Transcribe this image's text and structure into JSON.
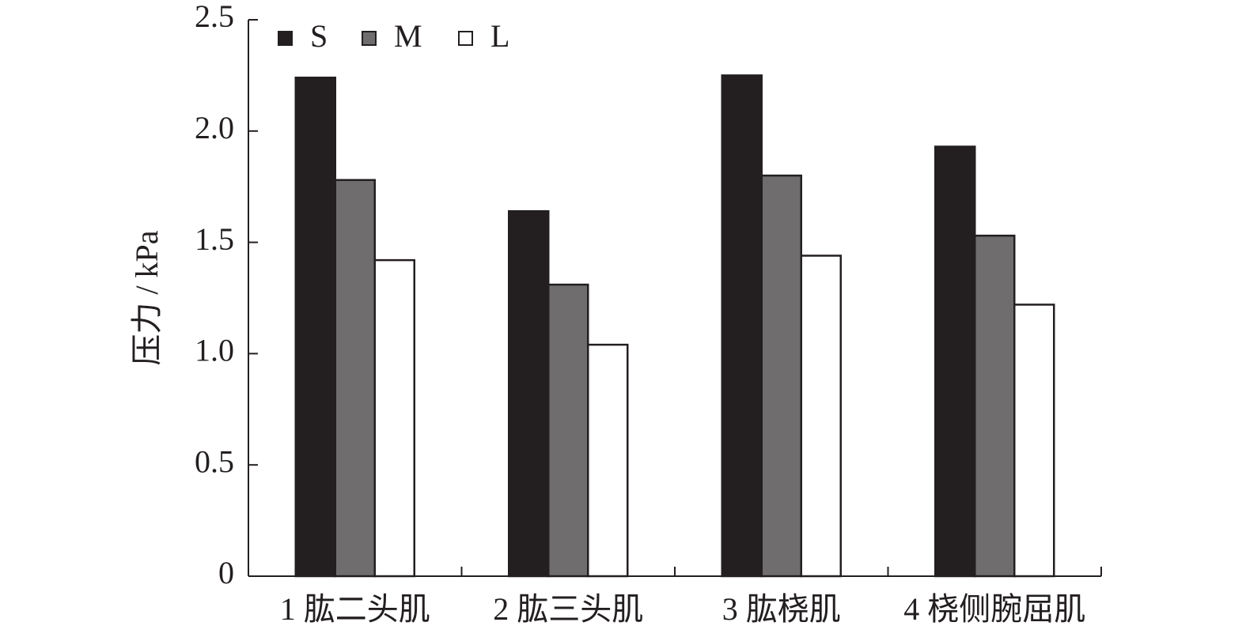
{
  "chart_data": {
    "type": "bar",
    "ylabel": "压力 / kPa",
    "categories": [
      "1 肱二头肌",
      "2 肱三头肌",
      "3 肱桡肌",
      "4 桡侧腕屈肌"
    ],
    "series": [
      {
        "name": "S",
        "color": "#231f20",
        "values": [
          2.24,
          1.64,
          2.25,
          1.93
        ]
      },
      {
        "name": "M",
        "color": "#6f6d6e",
        "values": [
          1.78,
          1.31,
          1.8,
          1.53
        ]
      },
      {
        "name": "L",
        "color": "#ffffff",
        "values": [
          1.42,
          1.04,
          1.44,
          1.22
        ]
      }
    ],
    "ylim": [
      0,
      2.5
    ],
    "yticks": [
      0,
      0.5,
      {
        "value": 1,
        "label": "1.0"
      },
      1.5,
      {
        "value": 2,
        "label": "2.0"
      },
      2.5
    ],
    "legend": "top-left"
  }
}
